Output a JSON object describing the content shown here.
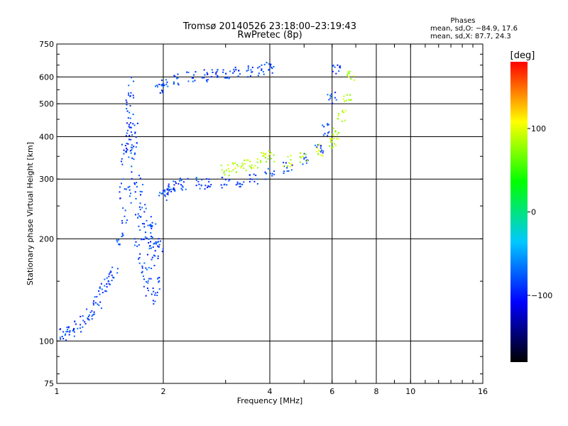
{
  "chart_data": {
    "type": "scatter",
    "title": "Tromsø 20140526 23:18:00–23:19:43",
    "subtitle": "RwPretec (8p)",
    "xlabel": "Frequency [MHz]",
    "ylabel": "Stationary phase Virtual Height [km]",
    "x_scale": "log",
    "y_scale": "log",
    "xlim": [
      1,
      16
    ],
    "ylim": [
      75,
      750
    ],
    "x_ticks": [
      1,
      2,
      4,
      6,
      8,
      10,
      16
    ],
    "x_tick_labels": [
      "1",
      "2",
      "4",
      "6",
      "8",
      "10",
      "16"
    ],
    "y_ticks": [
      75,
      100,
      200,
      300,
      400,
      500,
      600,
      750
    ],
    "y_tick_labels": [
      "75",
      "100",
      "200",
      "300",
      "400",
      "500",
      "600",
      "750"
    ],
    "grid": true,
    "grid_x": [
      2,
      4,
      6,
      8,
      10
    ],
    "grid_y": [
      100,
      200,
      300,
      400,
      500,
      600
    ],
    "legend": {
      "title": "Phases",
      "lines": [
        "mean, sd,O: −84.9, 17.6",
        "mean, sd,X:  87.7, 24.3"
      ],
      "position": "top-right"
    },
    "colorbar": {
      "label": "[deg]",
      "range": [
        -180,
        180
      ],
      "ticks": [
        100,
        0,
        -100
      ],
      "tick_labels": [
        "100",
        "0",
        "−100"
      ],
      "colors": [
        "#ff0000",
        "#ffff00",
        "#00ff00",
        "#00c8ff",
        "#0000ff",
        "#000000"
      ],
      "position": "right"
    },
    "series": [
      {
        "mode": "O",
        "phase": -85,
        "x": [
          1.0,
          1.05,
          1.1,
          1.15,
          1.2,
          1.25,
          1.3,
          1.35,
          1.4,
          1.45,
          1.5,
          1.55,
          1.6,
          1.62,
          1.65,
          1.7,
          1.75,
          1.8,
          1.85,
          1.9,
          1.95,
          2.0,
          2.05,
          2.1,
          2.2,
          2.3,
          2.5,
          2.7,
          3.0,
          3.3,
          3.6,
          4.0,
          4.5,
          5.0,
          5.5,
          5.8,
          6.0,
          6.2
        ],
        "y": [
          105,
          104,
          106,
          110,
          115,
          120,
          130,
          142,
          150,
          160,
          200,
          300,
          420,
          470,
          350,
          250,
          200,
          185,
          175,
          180,
          190,
          270,
          280,
          285,
          288,
          290,
          292,
          292,
          293,
          295,
          300,
          310,
          325,
          345,
          370,
          420,
          520,
          630
        ]
      },
      {
        "mode": "X",
        "phase": 88,
        "x": [
          3.0,
          3.2,
          3.4,
          3.6,
          3.8,
          4.0,
          4.5,
          5.0,
          5.5,
          6.0,
          6.2,
          6.4,
          6.6,
          6.8
        ],
        "y": [
          320,
          325,
          330,
          335,
          345,
          350,
          340,
          350,
          365,
          380,
          410,
          460,
          520,
          600
        ]
      },
      {
        "mode": "E-trace",
        "phase": -85,
        "x": [
          1.95,
          2.0,
          2.2,
          2.4,
          2.6,
          2.8,
          3.0,
          3.2,
          3.5,
          3.8,
          4.0
        ],
        "y": [
          560,
          575,
          590,
          600,
          605,
          610,
          615,
          620,
          625,
          630,
          640
        ]
      }
    ]
  }
}
